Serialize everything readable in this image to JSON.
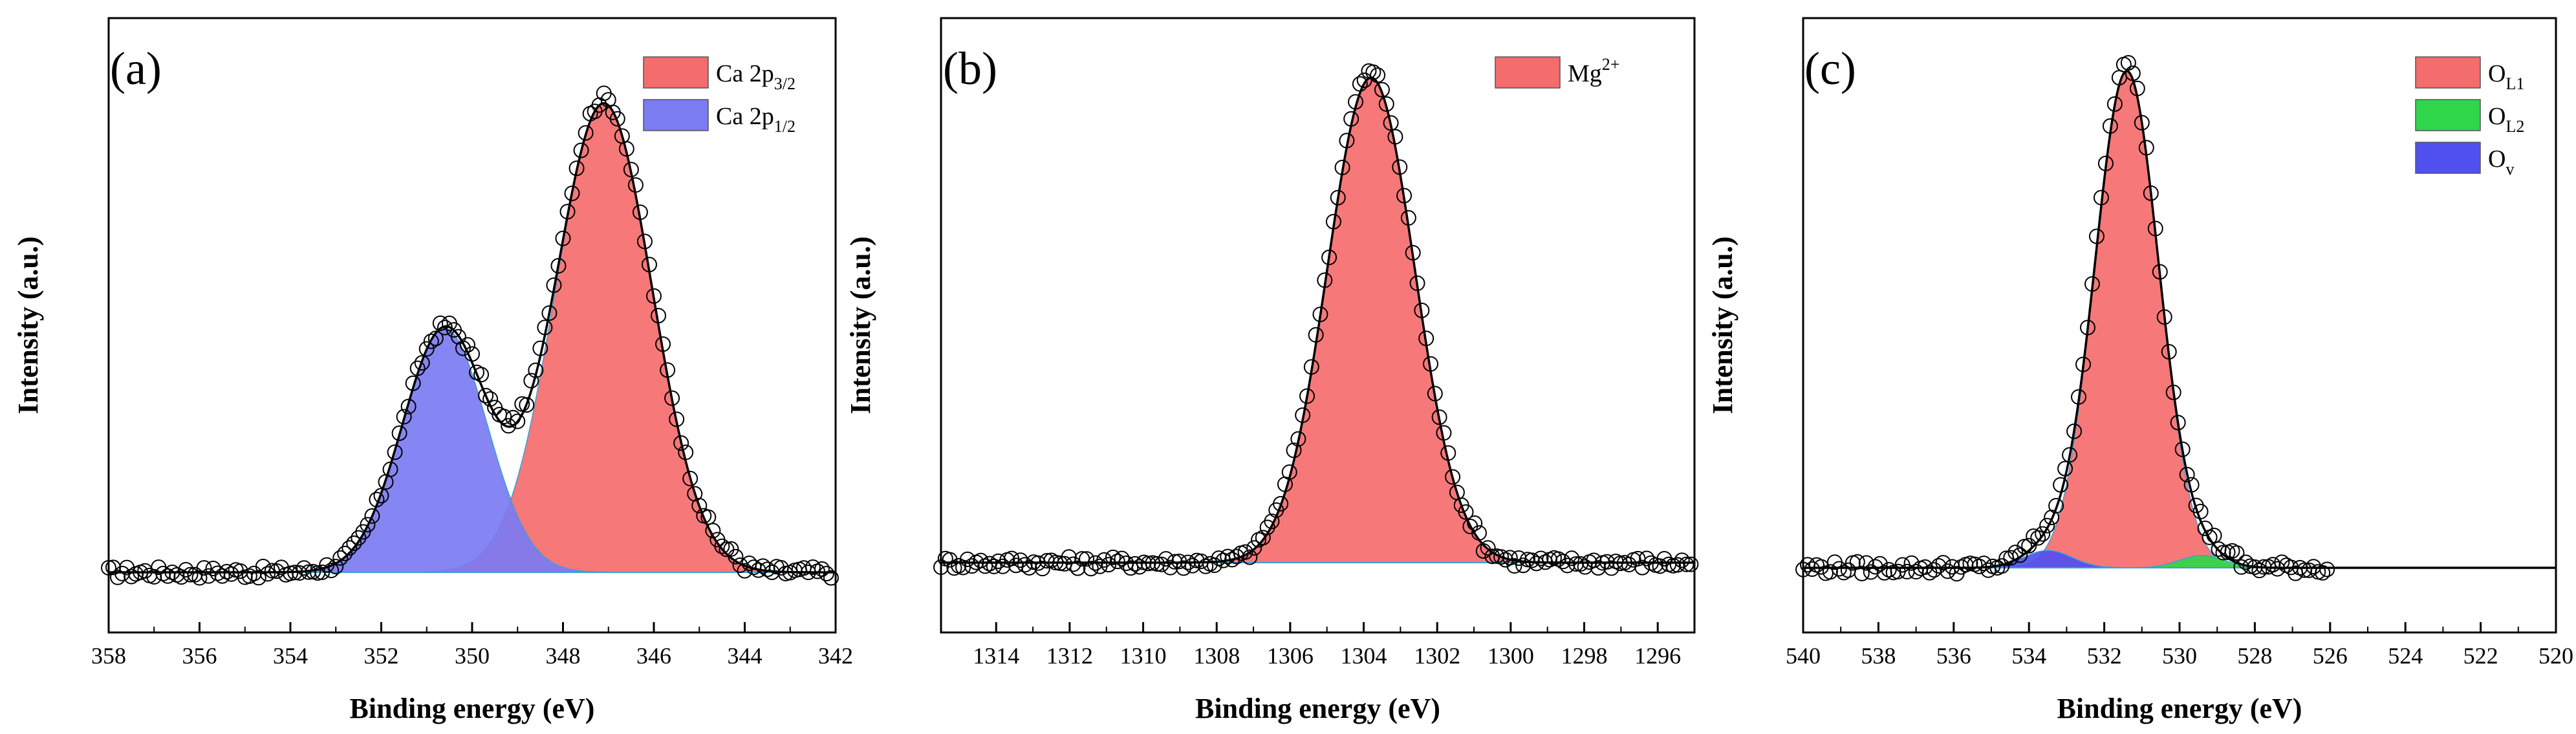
{
  "chart_data": [
    {
      "type": "area",
      "panel_label": "(a)",
      "xlabel": "Binding energy (eV)",
      "ylabel": "Intensity (a.u.)",
      "xlim": [
        358,
        342
      ],
      "x_ticks": [
        "358",
        "356",
        "354",
        "352",
        "350",
        "348",
        "346",
        "344",
        "342"
      ],
      "legend_position": "top-right",
      "series": [
        {
          "name_main": "Ca 2p",
          "name_sub": "3/2",
          "type": "gaussian-peak",
          "center": 347.1,
          "fwhm": 2.5,
          "amplitude": 1.0,
          "color": "#f56c6c",
          "legend": true
        },
        {
          "name_main": "Ca 2p",
          "name_sub": "1/2",
          "type": "gaussian-peak",
          "center": 350.6,
          "fwhm": 2.2,
          "amplitude": 0.52,
          "color": "#7b7bf2",
          "legend": true
        }
      ],
      "background": 0.0,
      "data_points": {
        "x_start": 358,
        "x_end": 342,
        "step": 0.1,
        "marker": "open-circle"
      }
    },
    {
      "type": "area",
      "panel_label": "(b)",
      "xlabel": "Binding energy (eV)",
      "ylabel": "Intensity (a.u.)",
      "xlim": [
        1315.5,
        1295
      ],
      "x_ticks": [
        "1314",
        "1312",
        "1310",
        "1308",
        "1306",
        "1304",
        "1302",
        "1300",
        "1298",
        "1296"
      ],
      "legend_position": "top-right",
      "series": [
        {
          "name_main": "Mg",
          "name_sup": "2+",
          "type": "gaussian-peak",
          "center": 1303.8,
          "fwhm": 2.8,
          "amplitude": 1.0,
          "color": "#f56c6c",
          "legend": true
        }
      ],
      "background": 0.0,
      "data_points": {
        "x_start": 1315.5,
        "x_end": 1295,
        "step": 0.12,
        "marker": "open-circle"
      }
    },
    {
      "type": "area",
      "panel_label": "(c)",
      "xlabel": "Binding energy (eV)",
      "ylabel": "Intensity (a.u.)",
      "xlim": [
        540,
        520
      ],
      "x_ticks": [
        "540",
        "538",
        "536",
        "534",
        "532",
        "530",
        "528",
        "526",
        "524",
        "522",
        "520"
      ],
      "legend_position": "top-right",
      "series": [
        {
          "name_main": "O",
          "name_sub": "L1",
          "type": "gaussian-peak",
          "center": 531.4,
          "fwhm": 2.0,
          "amplitude": 1.0,
          "color": "#f56c6c",
          "legend": true
        },
        {
          "name_main": "O",
          "name_sub": "L2",
          "type": "gaussian-peak",
          "center": 529.4,
          "fwhm": 1.4,
          "amplitude": 0.025,
          "color": "#2fd64a",
          "legend": true
        },
        {
          "name_main": "O",
          "name_sub": "v",
          "type": "gaussian-peak",
          "center": 533.5,
          "fwhm": 1.5,
          "amplitude": 0.035,
          "color": "#5050f0",
          "legend": true
        }
      ],
      "background": 0.0,
      "data_points": {
        "x_start": 540,
        "x_end": 526,
        "step": 0.12,
        "marker": "open-circle"
      }
    }
  ]
}
